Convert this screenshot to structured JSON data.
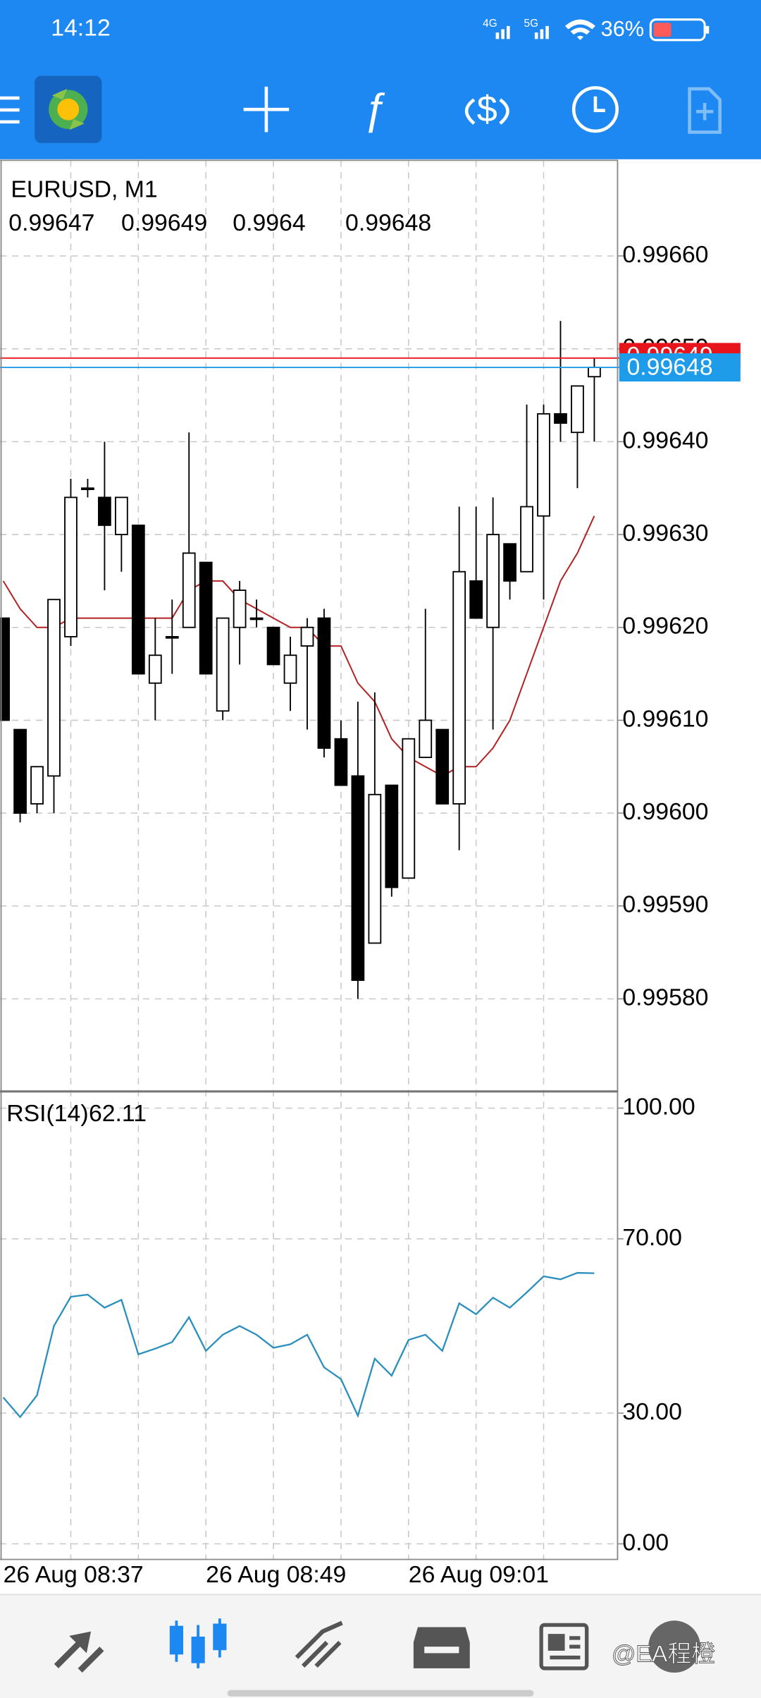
{
  "status_bar": {
    "time": "14:12",
    "battery": "36%"
  },
  "chart_data": [
    {
      "type": "candlestick",
      "title": "EURUSD, M1",
      "categories": [
        null,
        null,
        null,
        null,
        "26 Aug 08:37",
        null,
        null,
        null,
        null,
        null,
        null,
        null,
        "26 Aug 08:49",
        null,
        null,
        null,
        null,
        null,
        null,
        null,
        null,
        null,
        null,
        null,
        "26 Aug 09:01",
        null,
        null,
        null,
        null,
        null,
        null,
        null,
        null,
        null,
        null,
        null
      ],
      "open": [
        0.99621,
        0.99609,
        0.99601,
        0.99604,
        0.99619,
        0.99635,
        0.99634,
        0.9963,
        0.99631,
        0.99614,
        0.99619,
        0.9962,
        0.99627,
        0.99611,
        0.9962,
        0.99621,
        0.9962,
        0.99614,
        0.99618,
        0.99621,
        0.99608,
        0.99604,
        0.99586,
        0.99603,
        0.99593,
        0.99606,
        0.99609,
        0.99601,
        0.99625,
        0.9962,
        0.99629,
        0.99626,
        0.99632,
        0.99643,
        0.99641,
        0.99647
      ],
      "high": [
        0.99621,
        0.99609,
        0.99605,
        0.99623,
        0.99636,
        0.99636,
        0.9964,
        0.99634,
        0.99631,
        0.99621,
        0.99623,
        0.99641,
        0.99627,
        0.99621,
        0.99625,
        0.99623,
        0.9962,
        0.99619,
        0.99621,
        0.99622,
        0.9961,
        0.99612,
        0.99613,
        0.99603,
        0.99608,
        0.99622,
        0.99609,
        0.99633,
        0.99633,
        0.99634,
        0.99629,
        0.99644,
        0.99644,
        0.99653,
        0.99646,
        0.99649
      ],
      "low": [
        0.9961,
        0.99599,
        0.996,
        0.996,
        0.99618,
        0.99634,
        0.99624,
        0.99626,
        0.99615,
        0.9961,
        0.99615,
        0.9962,
        0.99615,
        0.9961,
        0.99616,
        0.9962,
        0.99616,
        0.99611,
        0.99609,
        0.99606,
        0.99603,
        0.9958,
        0.99586,
        0.99591,
        0.99593,
        0.99606,
        0.99601,
        0.99596,
        0.99621,
        0.99609,
        0.99623,
        0.99626,
        0.99623,
        0.9964,
        0.99635,
        0.9964
      ],
      "close": [
        0.9961,
        0.996,
        0.99605,
        0.99623,
        0.99634,
        0.99635,
        0.99631,
        0.99634,
        0.99615,
        0.99617,
        0.99619,
        0.99628,
        0.99615,
        0.99621,
        0.99624,
        0.99621,
        0.99616,
        0.99617,
        0.9962,
        0.99607,
        0.99603,
        0.99582,
        0.99602,
        0.99592,
        0.99608,
        0.9961,
        0.99601,
        0.99626,
        0.99621,
        0.9963,
        0.99625,
        0.99633,
        0.99643,
        0.99642,
        0.99646,
        0.99648
      ],
      "up_color": "#ffffff",
      "down_color": "#000000",
      "ma": {
        "color": "#b22222",
        "values": [
          0.99625,
          0.99622,
          0.9962,
          0.9962,
          0.99621,
          0.99621,
          0.99621,
          0.99621,
          0.99621,
          0.99621,
          0.99621,
          0.99624,
          0.99625,
          0.99625,
          0.99623,
          0.99622,
          0.99621,
          0.9962,
          0.9962,
          0.99618,
          0.99618,
          0.99614,
          0.99612,
          0.99608,
          0.99606,
          0.99605,
          0.99604,
          0.99605,
          0.99605,
          0.99607,
          0.9961,
          0.99615,
          0.9962,
          0.99625,
          0.99628,
          0.99632
        ]
      },
      "ask": 0.99649,
      "ask_color": "#e8141b",
      "bid": 0.99648,
      "bid_color": "#1e9be9",
      "ylim": [
        0.995702,
        0.996703
      ],
      "yticks": [
        {
          "value": 0.9958,
          "label": "0.99580"
        },
        {
          "value": 0.9959,
          "label": "0.99590"
        },
        {
          "value": 0.996,
          "label": "0.99600"
        },
        {
          "value": 0.9961,
          "label": "0.99610"
        },
        {
          "value": 0.9962,
          "label": "0.99620"
        },
        {
          "value": 0.9963,
          "label": "0.99630"
        },
        {
          "value": 0.9964,
          "label": "0.99640"
        },
        {
          "value": 0.9965,
          "label": "0.99650"
        },
        {
          "value": 0.9966,
          "label": "0.99660"
        }
      ],
      "grid": true
    },
    {
      "type": "line",
      "name": "RSI(14)",
      "color": "#2a8fbd",
      "values": [
        33.6,
        29.1,
        34.1,
        50.0,
        56.7,
        57.2,
        54.2,
        56.0,
        43.5,
        44.8,
        46.3,
        52.0,
        44.3,
        48.0,
        50.0,
        48.0,
        45.0,
        45.8,
        48.0,
        40.5,
        37.8,
        29.4,
        42.5,
        38.6,
        46.8,
        48.0,
        44.3,
        55.2,
        52.7,
        56.5,
        54.2,
        57.7,
        61.4,
        60.7,
        62.2,
        62.11
      ],
      "ylim": [
        -3.7,
        103.7
      ],
      "yticks": [
        {
          "value": 0,
          "label": "0.00"
        },
        {
          "value": 30,
          "label": "30.00"
        },
        {
          "value": 70,
          "label": "70.00"
        },
        {
          "value": 100,
          "label": "100.00"
        }
      ],
      "grid": true
    }
  ],
  "watermark": "@EA程橙"
}
